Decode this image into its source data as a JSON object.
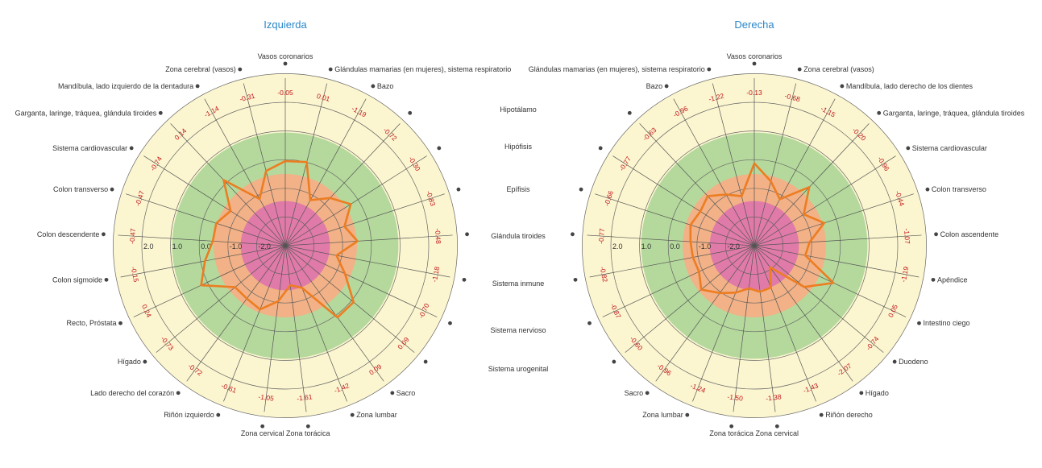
{
  "colors": {
    "title": "#2a86c8",
    "outer_band": "#fbf3a6",
    "inner_light": "#fcf6d0",
    "green_band": "#b5d99c",
    "orange_band": "#f2b186",
    "pink_core": "#e07aa8",
    "series_line": "#ec7d22",
    "value_text": "#c0161b",
    "grid": "#555555"
  },
  "middle_labels": [
    "Hipotálamo",
    "Hipófisis",
    "Epífisis",
    "Glándula tiroides",
    "Sistema inmune",
    "Sistema nervioso",
    "Sistema urogenital"
  ],
  "chart_data": [
    {
      "type": "radar",
      "title": "Izquierda",
      "radial_axis": {
        "ticks": [
          "2.0",
          "1.0",
          "0.0",
          "-1.0",
          "-2.0"
        ],
        "reversed": true,
        "range": [
          3.5,
          -3
        ]
      },
      "bands": [
        {
          "range": [
            1,
            3
          ],
          "color": "light-yellow"
        },
        {
          "range": [
            -0.5,
            1
          ],
          "color": "green"
        },
        {
          "range": [
            -1.5,
            -0.5
          ],
          "color": "orange"
        },
        {
          "range": [
            -3,
            -1.5
          ],
          "color": "pink"
        }
      ],
      "categories": [
        "Vasos coronarios",
        "Glándulas mamarias (en mujeres), sistema respiratorio",
        "Bazo",
        "Hipotálamo",
        "Hipófisis",
        "Epífisis",
        "Glándula tiroides",
        "Sistema inmune",
        "Sistema nervioso",
        "Sistema urogenital",
        "Sacro",
        "Zona lumbar",
        "Zona torácica",
        "Zona cervical",
        "Riñón izquierdo",
        "Lado derecho del corazón",
        "Hígado",
        "Recto, Próstata",
        "Colon sigmoide",
        "Colon descendente",
        "Colon transverso",
        "Sistema cardiovascular",
        "Garganta, laringe, tráquea, glándula tiroides",
        "Mandíbula, lado izquierdo de la dentadura",
        "Zona cerebral (vasos)"
      ],
      "label_texts": [
        "Vasos coronarios",
        "Glándulas mamarias (en mujeres), sistema respiratorio",
        "Bazo",
        "",
        "",
        "",
        "",
        "",
        "",
        "",
        "Sacro",
        "Zona lumbar",
        "Zona torácica",
        "Zona cervical",
        "Riñón izquierdo",
        "Lado derecho del corazón",
        "Hígado",
        "Recto, Próstata",
        "Colon sigmoide",
        "Colon descendente",
        "Colon transverso",
        "Sistema cardiovascular",
        "Garganta, laringe, tráquea, glándula tiroides",
        "Mandíbula, lado izquierdo de la dentadura",
        "Zona cerebral (vasos)"
      ],
      "value_labels": [
        "-0.05",
        "0.01",
        "-1.19",
        "-0.72",
        "-0.30",
        "-0.83",
        "-0.48",
        "-1.18",
        "-0.70",
        "0.09",
        "0.09",
        "-1.42",
        "-1.61",
        "-1.05",
        "-0.61",
        "-0.72",
        "-0.73",
        "0.24",
        "-0.15",
        "-0.47",
        "-0.47",
        "-0.74",
        "0.14",
        "-1.14",
        "-0.31"
      ],
      "values": [
        -0.05,
        0.01,
        -1.19,
        -0.72,
        -0.3,
        -0.83,
        -0.48,
        -1.18,
        -0.7,
        0.09,
        0.09,
        -1.42,
        -1.61,
        -1.05,
        -0.61,
        -0.72,
        -0.73,
        0.24,
        -0.15,
        -0.47,
        -0.47,
        -0.74,
        0.14,
        -1.14,
        -0.31
      ],
      "legend": "none"
    },
    {
      "type": "radar",
      "title": "Derecha",
      "radial_axis": {
        "ticks": [
          "2.0",
          "1.0",
          "0.0",
          "-1.0",
          "-2.0"
        ],
        "reversed": true,
        "range": [
          3.5,
          -3
        ]
      },
      "bands": [
        {
          "range": [
            1,
            3
          ],
          "color": "light-yellow"
        },
        {
          "range": [
            -0.5,
            1
          ],
          "color": "green"
        },
        {
          "range": [
            -1.5,
            -0.5
          ],
          "color": "orange"
        },
        {
          "range": [
            -3,
            -1.5
          ],
          "color": "pink"
        }
      ],
      "categories": [
        "Vasos coronarios",
        "Zona cerebral (vasos)",
        "Mandíbula, lado derecho de los dientes",
        "Garganta, laringe, tráquea, glándula tiroides",
        "Sistema cardiovascular",
        "Colon transverso",
        "Colon ascendente",
        "Apéndice",
        "Intestino ciego",
        "Duodeno",
        "Hígado",
        "Riñón derecho",
        "Zona cervical",
        "Zona torácica",
        "Zona lumbar",
        "Sacro",
        "Sistema urogenital",
        "Sistema nervioso",
        "Sistema inmune",
        "Glándula tiroides",
        "Epífisis",
        "Hipófisis",
        "Hipotálamo",
        "Bazo",
        "Glándulas mamarias (en mujeres), sistema respiratorio"
      ],
      "label_texts": [
        "Vasos coronarios",
        "Zona cerebral (vasos)",
        "Mandíbula, lado derecho de los dientes",
        "Garganta, laringe, tráquea, glándula tiroides",
        "Sistema cardiovascular",
        "Colon transverso",
        "Colon ascendente",
        "Apéndice",
        "Intestino ciego",
        "Duodeno",
        "Hígado",
        "Riñón derecho",
        "Zona cervical",
        "Zona torácica",
        "Zona lumbar",
        "Sacro",
        "",
        "",
        "",
        "",
        "",
        "",
        "",
        "Bazo",
        "Glándulas mamarias (en mujeres), sistema respiratorio"
      ],
      "value_labels": [
        "-0.13",
        "-0.68",
        "-1.15",
        "-0.20",
        "-0.96",
        "-0.44",
        "-1.07",
        "-1.19",
        "0.05",
        "-0.74",
        "-2.07",
        "-1.43",
        "-1.38",
        "-1.50",
        "-1.24",
        "-0.96",
        "-0.60",
        "-0.87",
        "-0.82",
        "-0.77",
        "-0.66",
        "-0.77",
        "-0.63",
        "-0.96",
        "-1.22"
      ],
      "values": [
        -0.13,
        -0.68,
        -1.15,
        -0.2,
        -0.96,
        -0.44,
        -1.07,
        -1.19,
        0.05,
        -0.74,
        -2.07,
        -1.43,
        -1.38,
        -1.5,
        -1.24,
        -0.96,
        -0.6,
        -0.87,
        -0.82,
        -0.77,
        -0.66,
        -0.77,
        -0.63,
        -0.96,
        -1.22
      ],
      "legend": "none"
    }
  ]
}
